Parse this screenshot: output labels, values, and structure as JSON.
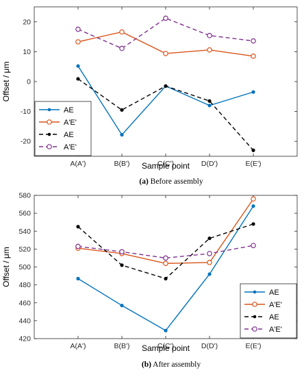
{
  "chart_data": [
    {
      "type": "line",
      "categories": [
        "A(A')",
        "B(B')",
        "C(C')",
        "D(D')",
        "E(E')"
      ],
      "series": [
        {
          "name": "AE",
          "values": [
            5.2,
            -17.8,
            -1.5,
            -8.0,
            -3.5
          ],
          "color": "#0072BD",
          "style": "solid",
          "marker": "filled-dot"
        },
        {
          "name": "A'E'",
          "values": [
            13.3,
            16.6,
            9.4,
            10.6,
            8.5
          ],
          "color": "#D95319",
          "style": "solid",
          "marker": "open-circle"
        },
        {
          "name": "AE",
          "values": [
            0.9,
            -9.5,
            -1.5,
            -6.5,
            -23.0
          ],
          "color": "#000000",
          "style": "dashed",
          "marker": "filled-dot"
        },
        {
          "name": "A'E'",
          "values": [
            17.5,
            11.1,
            21.2,
            15.4,
            13.6
          ],
          "color": "#7E2F8E",
          "style": "dashed",
          "marker": "open-circle"
        }
      ],
      "xlabel": "Sample point",
      "ylabel": "Offset / μm",
      "ylim": [
        -25,
        25
      ],
      "yticks": [
        -20,
        -10,
        0,
        10,
        20
      ],
      "legend": "bottom-left",
      "caption_prefix": "(a)",
      "caption_text": " Before assembly"
    },
    {
      "type": "line",
      "categories": [
        "A(A')",
        "B(B')",
        "C(C')",
        "D(D')",
        "E(E')"
      ],
      "series": [
        {
          "name": "AE",
          "values": [
            487,
            457,
            429,
            492,
            568
          ],
          "color": "#0072BD",
          "style": "solid",
          "marker": "filled-dot"
        },
        {
          "name": "A'E'",
          "values": [
            521,
            515,
            504,
            505,
            576
          ],
          "color": "#D95319",
          "style": "solid",
          "marker": "open-circle"
        },
        {
          "name": "AE",
          "values": [
            545,
            502,
            487,
            532,
            548
          ],
          "color": "#000000",
          "style": "dashed",
          "marker": "filled-dot"
        },
        {
          "name": "A'E'",
          "values": [
            523,
            517,
            510,
            515,
            524
          ],
          "color": "#7E2F8E",
          "style": "dashed",
          "marker": "open-circle"
        }
      ],
      "xlabel": "Sample point",
      "ylabel": "Offset / μm",
      "ylim": [
        420,
        580
      ],
      "yticks": [
        420,
        440,
        460,
        480,
        500,
        520,
        540,
        560,
        580
      ],
      "legend": "bottom-right",
      "caption_prefix": "(b)",
      "caption_text": " After assembly"
    }
  ]
}
